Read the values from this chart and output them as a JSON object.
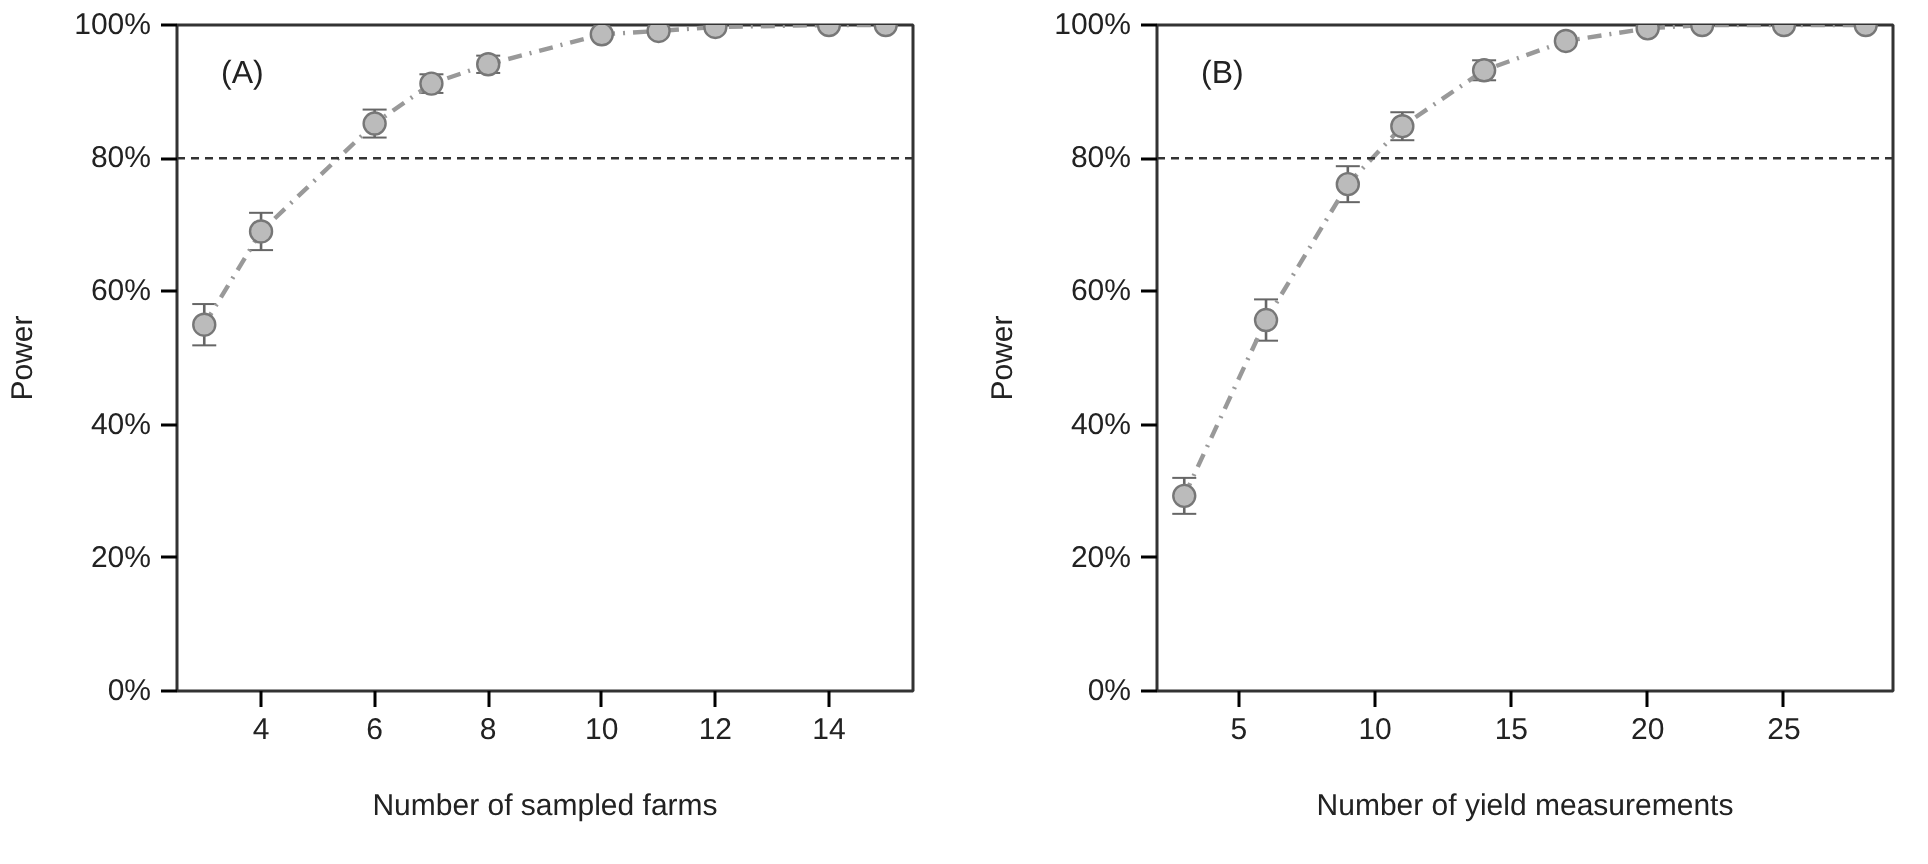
{
  "chart_data": [
    {
      "type": "line",
      "xlabel": "Number of sampled farms",
      "ylabel": "Power",
      "annotations": [
        "(A)"
      ],
      "x": [
        3,
        4,
        6,
        7,
        8,
        10,
        11,
        12,
        14,
        15
      ],
      "series": [
        {
          "color": "#999999",
          "line_style": "dashdot",
          "marker": "circle",
          "values": [
            55.0,
            69.0,
            85.2,
            91.2,
            94.1,
            98.6,
            99.1,
            99.7,
            100,
            100
          ],
          "errors": [
            3.1,
            2.8,
            2.1,
            1.4,
            1.3,
            null,
            null,
            null,
            null,
            null
          ]
        }
      ],
      "xlim": [
        2.52,
        15.48
      ],
      "xticks": [
        4,
        6,
        8,
        10,
        12,
        14
      ],
      "ylim": [
        0,
        100
      ],
      "yticks": [
        {
          "value": 0,
          "label": "0%"
        },
        {
          "value": 20,
          "label": "20%"
        },
        {
          "value": 40,
          "label": "40%"
        },
        {
          "value": 60,
          "label": "60%"
        },
        {
          "value": 80,
          "label": "80%"
        },
        {
          "value": 100,
          "label": "100%"
        }
      ],
      "ref_lines": [
        {
          "axis": "y",
          "value": 80,
          "label": null,
          "color": "#333333",
          "line_style": "dashed"
        }
      ],
      "grid": false
    },
    {
      "type": "line",
      "xlabel": "Number of yield measurements",
      "ylabel": "Power",
      "annotations": [
        "(B)"
      ],
      "x": [
        3,
        6,
        9,
        11,
        14,
        17,
        20,
        22,
        25,
        28
      ],
      "series": [
        {
          "color": "#999999",
          "line_style": "dashdot",
          "marker": "circle",
          "values": [
            29.3,
            55.7,
            76.1,
            84.8,
            93.2,
            97.6,
            99.5,
            100,
            100,
            100
          ],
          "errors": [
            2.7,
            3.1,
            2.7,
            2.1,
            1.5,
            null,
            null,
            null,
            null,
            null
          ]
        }
      ],
      "xlim": [
        2,
        29
      ],
      "xticks": [
        5,
        10,
        15,
        20,
        25
      ],
      "ylim": [
        0,
        100
      ],
      "yticks": [
        {
          "value": 0,
          "label": "0%"
        },
        {
          "value": 20,
          "label": "20%"
        },
        {
          "value": 40,
          "label": "40%"
        },
        {
          "value": 60,
          "label": "60%"
        },
        {
          "value": 80,
          "label": "80%"
        },
        {
          "value": 100,
          "label": "100%"
        }
      ],
      "ref_lines": [
        {
          "axis": "y",
          "value": 80,
          "label": null,
          "color": "#333333",
          "line_style": "dashed"
        }
      ],
      "grid": false
    }
  ]
}
